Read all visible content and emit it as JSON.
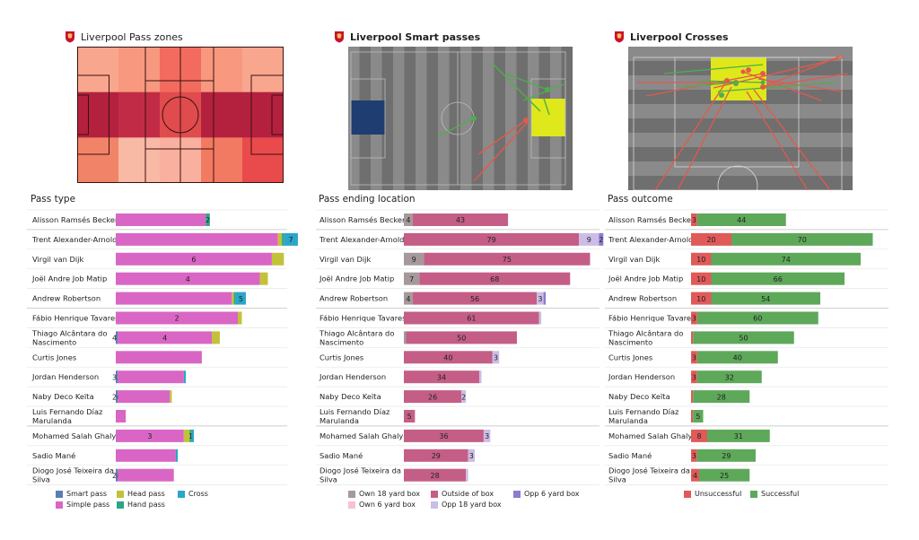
{
  "panels": [
    {
      "title": "Liverpool Pass zones",
      "section": "Pass type"
    },
    {
      "title": "Liverpool Smart passes",
      "section": "Pass ending location"
    },
    {
      "title": "Liverpool Crosses",
      "section": "Pass outcome"
    }
  ],
  "colors": {
    "simple_pass": "#d966c4",
    "head_pass": "#c2c23a",
    "cross": "#29a6c9",
    "smart_pass": "#5b7db5",
    "hand_pass": "#2aa58a",
    "outside_box": "#c45e86",
    "own_18": "#a5999b",
    "opp_18": "#cbbde6",
    "opp_6": "#8e7ad1",
    "own_6": "#f6c1d2",
    "unsuccessful": "#e05a5a",
    "successful": "#5ea85a"
  },
  "players": [
    "Alisson Ramsés Becker",
    "Trent Alexander-Arnold",
    "Virgil van Dijk",
    "Joël Andre Job Matip",
    "Andrew Robertson",
    "Fábio Henrique Tavares",
    [
      "Thiago Alcântara do",
      "Nascimento"
    ],
    "Curtis Jones",
    "Jordan Henderson",
    "Naby Deco Keïta",
    [
      "Luis Fernando Díaz",
      "Marulanda"
    ],
    "Mohamed  Salah Ghaly",
    "Sadio Mané",
    [
      "Diogo José Teixeira da",
      "Silva"
    ]
  ],
  "legends": [
    [
      {
        "label": "Smart pass",
        "color": "#5b7db5"
      },
      {
        "label": "Simple pass",
        "color": "#d966c4"
      },
      {
        "label": "Head pass",
        "color": "#c2c23a"
      },
      {
        "label": "Hand pass",
        "color": "#2aa58a"
      },
      {
        "label": "Cross",
        "color": "#29a6c9"
      }
    ],
    [
      {
        "label": "Own 18 yard box",
        "color": "#a5999b"
      },
      {
        "label": "Own 6 yard box",
        "color": "#f6c1d2"
      },
      {
        "label": "Outside of box",
        "color": "#c45e86"
      },
      {
        "label": "Opp 18 yard box",
        "color": "#cbbde6"
      },
      {
        "label": "Opp 6 yard box",
        "color": "#8e7ad1"
      }
    ],
    [
      {
        "label": "Unsuccessful",
        "color": "#e05a5a"
      },
      {
        "label": "Successful",
        "color": "#5ea85a"
      }
    ]
  ],
  "chart_data": [
    {
      "type": "heatmap",
      "title": "Liverpool Pass zones",
      "grid": [
        [
          "#f9a68f",
          "#b4213f",
          "#f18468"
        ],
        [
          "#f7987f",
          "#c22b45",
          "#f8b9a5"
        ],
        [
          "#f26b5e",
          "#e04b4e",
          "#f9b09e"
        ],
        [
          "#f7987f",
          "#b4213f",
          "#f27a62"
        ],
        [
          "#f9a68f",
          "#b4213f",
          "#e94a4c"
        ]
      ]
    },
    {
      "type": "bar",
      "title": "Pass type",
      "series": [
        {
          "name": "Smart pass",
          "values": [
            0,
            0,
            0,
            0,
            0,
            0,
            1,
            0,
            1,
            1,
            0,
            0,
            0,
            1
          ]
        },
        {
          "name": "Simple pass",
          "values": [
            45,
            81,
            78,
            72,
            58,
            61,
            47,
            43,
            33,
            26,
            5,
            34,
            30,
            28
          ]
        },
        {
          "name": "Head pass",
          "values": [
            0,
            2,
            6,
            4,
            1,
            2,
            4,
            0,
            0,
            1,
            0,
            3,
            0,
            0
          ]
        },
        {
          "name": "Hand pass",
          "values": [
            2,
            1,
            0,
            0,
            1,
            0,
            0,
            0,
            0,
            0,
            0,
            1,
            0,
            0
          ]
        },
        {
          "name": "Cross",
          "values": [
            0,
            7,
            0,
            0,
            5,
            0,
            0,
            0,
            1,
            0,
            0,
            1,
            1,
            0
          ]
        }
      ],
      "data_labels": [
        [
          "45",
          "",
          "",
          "2",
          ""
        ],
        [
          "81",
          "",
          "",
          "",
          "7"
        ],
        [
          "78",
          "6",
          "",
          "",
          ""
        ],
        [
          "72",
          "4",
          "",
          "",
          ""
        ],
        [
          "58",
          "",
          "",
          "",
          "5"
        ],
        [
          "61",
          "2",
          "",
          "",
          ""
        ],
        [
          "47",
          "4",
          "",
          "",
          ""
        ],
        [
          "43",
          "",
          "",
          "",
          ""
        ],
        [
          "33",
          "",
          "",
          "",
          ""
        ],
        [
          "26",
          "",
          "",
          "",
          ""
        ],
        [
          "5",
          "",
          "",
          "",
          ""
        ],
        [
          "34",
          "3",
          "",
          "1",
          ""
        ],
        [
          "30",
          "",
          "",
          "",
          ""
        ],
        [
          "28",
          "",
          "",
          "",
          ""
        ]
      ]
    },
    {
      "type": "bar",
      "title": "Pass ending location",
      "series": [
        {
          "name": "Own 18 yard box",
          "values": [
            4,
            0,
            9,
            7,
            4,
            0,
            1,
            0,
            0,
            0,
            0,
            0,
            0,
            0
          ]
        },
        {
          "name": "Own 6 yard box",
          "values": [
            0,
            0,
            0,
            0,
            0,
            0,
            0,
            0,
            0,
            0,
            0,
            0,
            0,
            0
          ]
        },
        {
          "name": "Outside of box",
          "values": [
            43,
            79,
            75,
            68,
            56,
            61,
            50,
            40,
            34,
            26,
            5,
            36,
            29,
            28
          ]
        },
        {
          "name": "Opp 18 yard box",
          "values": [
            0,
            9,
            0,
            0,
            3,
            1,
            0,
            3,
            1,
            2,
            0,
            3,
            3,
            1
          ]
        },
        {
          "name": "Opp 6 yard box",
          "values": [
            0,
            2,
            0,
            0,
            1,
            0,
            0,
            0,
            0,
            0,
            0,
            0,
            0,
            0
          ]
        }
      ],
      "data_labels": [
        [
          "4",
          "",
          "43",
          "",
          ""
        ],
        [
          "",
          "",
          "79",
          "9",
          "2"
        ],
        [
          "9",
          "",
          "75",
          "",
          ""
        ],
        [
          "7",
          "",
          "68",
          "",
          ""
        ],
        [
          "4",
          "",
          "56",
          "3",
          ""
        ],
        [
          "",
          "",
          "61",
          "",
          ""
        ],
        [
          "",
          "",
          "50",
          "",
          ""
        ],
        [
          "",
          "",
          "40",
          "3",
          ""
        ],
        [
          "",
          "",
          "34",
          "",
          ""
        ],
        [
          "",
          "",
          "26",
          "2",
          ""
        ],
        [
          "",
          "",
          "5",
          "",
          ""
        ],
        [
          "",
          "",
          "36",
          "3",
          ""
        ],
        [
          "",
          "",
          "29",
          "3",
          ""
        ],
        [
          "",
          "",
          "28",
          "",
          ""
        ]
      ]
    },
    {
      "type": "bar",
      "title": "Pass outcome",
      "series": [
        {
          "name": "Unsuccessful",
          "values": [
            3,
            20,
            10,
            10,
            10,
            3,
            1,
            3,
            3,
            1,
            1,
            8,
            3,
            4
          ]
        },
        {
          "name": "Successful",
          "values": [
            44,
            70,
            74,
            66,
            54,
            60,
            50,
            40,
            32,
            28,
            5,
            31,
            29,
            25
          ]
        }
      ],
      "data_labels": [
        [
          "3",
          "44"
        ],
        [
          "20",
          "70"
        ],
        [
          "10",
          "74"
        ],
        [
          "10",
          "66"
        ],
        [
          "10",
          "54"
        ],
        [
          "3",
          "60"
        ],
        [
          "",
          "50"
        ],
        [
          "3",
          "40"
        ],
        [
          "3",
          "32"
        ],
        [
          "",
          "28"
        ],
        [
          "",
          "5"
        ],
        [
          "8",
          "31"
        ],
        [
          "3",
          "29"
        ],
        [
          "4",
          "25"
        ]
      ]
    }
  ]
}
